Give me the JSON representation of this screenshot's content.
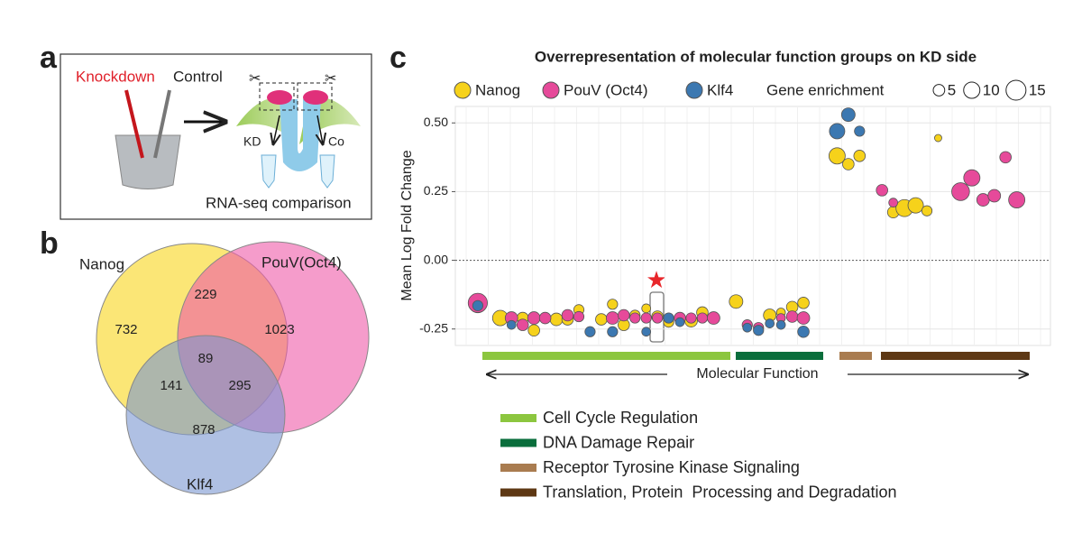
{
  "panel_a": {
    "letter": "a",
    "knockdown": "Knockdown",
    "control": "Control",
    "kd": "KD",
    "co": "Co",
    "caption": "RNA-seq comparison"
  },
  "panel_b": {
    "letter": "b",
    "sets": [
      "Nanog",
      "PouV(Oct4)",
      "Klf4"
    ],
    "regions": {
      "nanog_only": "732",
      "nanog_pouv": "229",
      "pouv_only": "1023",
      "all": "89",
      "nanog_klf4": "141",
      "pouv_klf4": "295",
      "klf4_only": "878"
    }
  },
  "chart_data": {
    "type": "scatter",
    "letter": "c",
    "title": "Overrepresentation of molecular function groups on KD side",
    "ylabel": "Mean Log Fold Change",
    "xlabel": "Molecular Function",
    "ylim": [
      -0.31,
      0.56
    ],
    "xlim": [
      0,
      53
    ],
    "yticks": [
      {
        "value": 0.5,
        "label": "0.50"
      },
      {
        "value": 0.25,
        "label": "0.25"
      },
      {
        "value": 0,
        "label": "0.00"
      },
      {
        "value": -0.25,
        "label": "-0.25"
      }
    ],
    "grid": true,
    "size_legend": {
      "title": "Gene enrichment",
      "sizes": [
        5,
        10,
        15
      ]
    },
    "series": [
      {
        "name": "Nanog",
        "color": "#f6d21b",
        "x": [
          2,
          4,
          6,
          7,
          9,
          10,
          11,
          13,
          14,
          15,
          16,
          17,
          18,
          19,
          21,
          22,
          25,
          28,
          29,
          30,
          31,
          34,
          35,
          36,
          39,
          40,
          41,
          42,
          43
        ],
        "values": [
          -0.16,
          -0.21,
          -0.21,
          -0.255,
          -0.215,
          -0.215,
          -0.18,
          -0.215,
          -0.16,
          -0.235,
          -0.2,
          -0.175,
          -0.205,
          -0.225,
          -0.22,
          -0.19,
          -0.15,
          -0.2,
          -0.19,
          -0.17,
          -0.155,
          0.38,
          0.35,
          0.38,
          0.175,
          0.19,
          0.2,
          0.18,
          0.445
        ],
        "sizes": [
          11,
          9,
          5,
          5,
          6,
          5,
          4,
          5,
          4,
          5,
          4,
          3,
          5,
          4,
          6,
          5,
          7,
          6,
          3,
          5,
          5,
          10,
          5,
          5,
          5,
          11,
          9,
          4,
          2
        ]
      },
      {
        "name": "PouV (Oct4)",
        "color": "#e64a9a",
        "x": [
          2,
          5,
          6,
          7,
          8,
          10,
          11,
          14,
          15,
          16,
          17,
          18,
          20,
          21,
          22,
          23,
          26,
          27,
          29,
          30,
          31,
          38,
          39,
          45,
          46,
          47,
          48,
          49,
          50
        ],
        "values": [
          -0.155,
          -0.21,
          -0.235,
          -0.21,
          -0.21,
          -0.2,
          -0.205,
          -0.21,
          -0.2,
          -0.21,
          -0.21,
          -0.21,
          -0.21,
          -0.21,
          -0.21,
          -0.21,
          -0.235,
          -0.245,
          -0.21,
          -0.205,
          -0.21,
          0.255,
          0.21,
          0.25,
          0.3,
          0.22,
          0.235,
          0.375,
          0.22
        ],
        "sizes": [
          14,
          6,
          5,
          6,
          5,
          5,
          4,
          6,
          5,
          4,
          4,
          4,
          5,
          4,
          4,
          6,
          4,
          4,
          3,
          5,
          6,
          5,
          3,
          12,
          10,
          6,
          6,
          5,
          10
        ]
      },
      {
        "name": "Klf4",
        "color": "#3c78b1",
        "x": [
          2,
          5,
          12,
          14,
          17,
          19,
          20,
          26,
          27,
          28,
          29,
          31,
          34,
          35,
          36
        ],
        "values": [
          -0.165,
          -0.235,
          -0.26,
          -0.26,
          -0.26,
          -0.21,
          -0.225,
          -0.245,
          -0.255,
          -0.23,
          -0.235,
          -0.26,
          0.47,
          0.53,
          0.47
        ],
        "sizes": [
          4,
          3,
          4,
          4,
          3,
          4,
          3,
          3,
          4,
          3,
          3,
          5,
          9,
          7,
          4
        ]
      }
    ],
    "groups": [
      {
        "name": "Cell Cycle Regulation",
        "color": "#8cc63f"
      },
      {
        "name": "DNA Damage Repair",
        "color": "#0a6e3c"
      },
      {
        "name": "Receptor Tyrosine Kinase Signaling",
        "color": "#a97c50"
      },
      {
        "name": "Translation, Protein  Processing and Degradation",
        "color": "#5e3814"
      }
    ]
  }
}
